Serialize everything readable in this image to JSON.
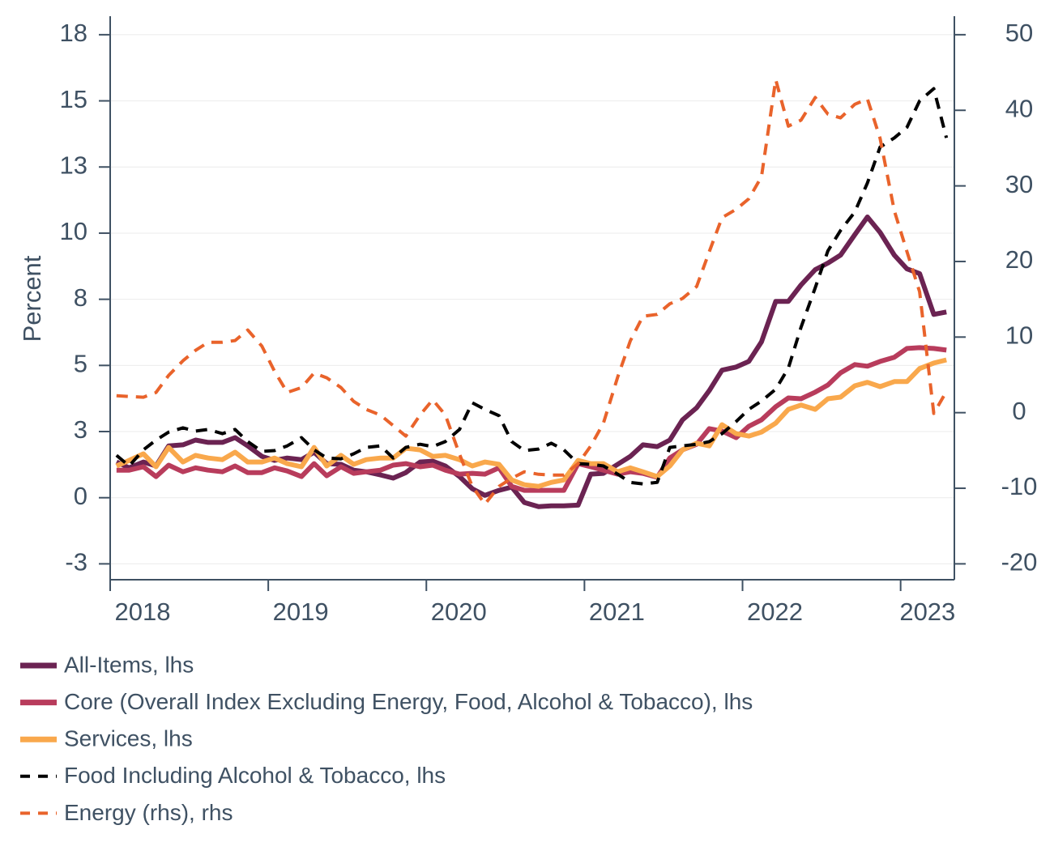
{
  "chart_data": {
    "type": "line",
    "y_label": "Percent",
    "x": [
      2018.04,
      2018.12,
      2018.21,
      2018.29,
      2018.37,
      2018.46,
      2018.54,
      2018.62,
      2018.71,
      2018.79,
      2018.87,
      2018.96,
      2019.04,
      2019.12,
      2019.21,
      2019.29,
      2019.37,
      2019.46,
      2019.54,
      2019.62,
      2019.71,
      2019.79,
      2019.87,
      2019.96,
      2020.04,
      2020.12,
      2020.21,
      2020.29,
      2020.37,
      2020.46,
      2020.54,
      2020.62,
      2020.71,
      2020.79,
      2020.87,
      2020.96,
      2021.04,
      2021.12,
      2021.21,
      2021.29,
      2021.37,
      2021.46,
      2021.54,
      2021.62,
      2021.71,
      2021.79,
      2021.87,
      2021.96,
      2022.04,
      2022.12,
      2022.21,
      2022.29,
      2022.37,
      2022.46,
      2022.54,
      2022.62,
      2022.71,
      2022.79,
      2022.87,
      2022.96,
      2023.04,
      2023.12,
      2023.21,
      2023.29
    ],
    "xlim": [
      2018,
      2023.34
    ],
    "xticks": [
      2018,
      2019,
      2020,
      2021,
      2022,
      2023
    ],
    "ylim": [
      -3.1,
      18.2
    ],
    "yticks": [
      {
        "value": -2.5,
        "label": "-3"
      },
      0,
      {
        "value": 2.5,
        "label": "3"
      },
      5,
      {
        "value": 7.5,
        "label": "8"
      },
      10,
      {
        "value": 12.5,
        "label": "13"
      },
      15,
      {
        "value": 17.5,
        "label": "18"
      }
    ],
    "y2lim": [
      -22.1,
      52.45
    ],
    "y2ticks": [
      -20,
      -10,
      0,
      10,
      20,
      30,
      40,
      50
    ],
    "grid": true,
    "legend": "bottom",
    "series": [
      {
        "name": "All-Items, lhs",
        "color": "#6b2352",
        "style": "solid",
        "values": [
          1.35,
          1.13,
          1.35,
          1.2,
          1.96,
          2.0,
          2.18,
          2.09,
          2.09,
          2.27,
          1.96,
          1.56,
          1.41,
          1.5,
          1.44,
          1.72,
          1.29,
          1.26,
          1.04,
          0.98,
          0.86,
          0.74,
          0.95,
          1.35,
          1.38,
          1.2,
          0.8,
          0.34,
          0.09,
          0.28,
          0.4,
          -0.18,
          -0.34,
          -0.31,
          -0.31,
          -0.28,
          0.89,
          0.92,
          1.26,
          1.56,
          2.0,
          1.93,
          2.18,
          2.94,
          3.4,
          4.05,
          4.82,
          4.94,
          5.15,
          5.89,
          7.42,
          7.42,
          8.04,
          8.62,
          8.87,
          9.17,
          9.94,
          10.61,
          10.03,
          9.17,
          8.65,
          8.47,
          6.93,
          7.02
        ]
      },
      {
        "name": "Core (Overall Index Excluding Energy, Food, Alcohol & Tobacco), lhs",
        "color": "#b83c5c",
        "style": "solid",
        "values": [
          1.04,
          1.04,
          1.17,
          0.8,
          1.23,
          0.98,
          1.13,
          1.04,
          0.98,
          1.2,
          0.95,
          0.95,
          1.13,
          1.01,
          0.8,
          1.29,
          0.83,
          1.17,
          0.92,
          0.98,
          1.04,
          1.23,
          1.29,
          1.17,
          1.23,
          1.04,
          0.89,
          0.92,
          0.89,
          1.13,
          0.43,
          0.28,
          0.28,
          0.28,
          0.28,
          1.29,
          1.17,
          1.04,
          0.89,
          0.98,
          0.92,
          0.77,
          1.5,
          1.81,
          2.02,
          2.61,
          2.52,
          2.27,
          2.7,
          2.94,
          3.44,
          3.77,
          3.74,
          3.99,
          4.26,
          4.72,
          5.03,
          4.97,
          5.15,
          5.31,
          5.64,
          5.67,
          5.64,
          5.58
        ]
      },
      {
        "name": "Services, lhs",
        "color": "#f9a84c",
        "style": "solid",
        "values": [
          1.2,
          1.41,
          1.66,
          1.17,
          1.9,
          1.35,
          1.6,
          1.5,
          1.44,
          1.72,
          1.35,
          1.35,
          1.5,
          1.29,
          1.17,
          1.9,
          1.2,
          1.6,
          1.26,
          1.44,
          1.5,
          1.5,
          1.87,
          1.81,
          1.56,
          1.6,
          1.44,
          1.2,
          1.35,
          1.26,
          0.67,
          0.49,
          0.43,
          0.58,
          0.67,
          1.41,
          1.29,
          1.29,
          0.98,
          1.13,
          0.98,
          0.8,
          1.2,
          1.81,
          2.06,
          1.96,
          2.76,
          2.42,
          2.33,
          2.48,
          2.82,
          3.34,
          3.5,
          3.34,
          3.74,
          3.8,
          4.23,
          4.36,
          4.2,
          4.39,
          4.39,
          4.88,
          5.09,
          5.21
        ]
      },
      {
        "name": "Food Including Alcohol & Tobacco, lhs",
        "color": "#000000",
        "style": "dashed",
        "values": [
          1.6,
          1.2,
          1.81,
          2.18,
          2.48,
          2.64,
          2.52,
          2.58,
          2.42,
          2.58,
          2.12,
          1.75,
          1.78,
          1.96,
          2.27,
          1.81,
          1.5,
          1.47,
          1.66,
          1.9,
          1.96,
          1.5,
          1.9,
          2.02,
          1.93,
          2.12,
          2.58,
          3.59,
          3.34,
          3.1,
          2.12,
          1.78,
          1.84,
          2.06,
          1.81,
          1.29,
          1.26,
          1.2,
          0.89,
          0.58,
          0.52,
          0.58,
          1.9,
          1.96,
          2.02,
          2.12,
          2.42,
          2.88,
          3.34,
          3.65,
          4.1,
          4.9,
          6.44,
          7.94,
          9.33,
          10.1,
          10.8,
          11.9,
          13.25,
          13.6,
          14.0,
          15.0,
          15.46,
          13.6
        ]
      },
      {
        "name": "Energy (rhs), rhs",
        "color": "#e9632b",
        "style": "dashed",
        "axis": "y2",
        "values": [
          2.25,
          2.14,
          2.04,
          2.68,
          4.93,
          6.86,
          8.25,
          9.32,
          9.32,
          9.54,
          10.93,
          8.79,
          5.47,
          2.68,
          3.32,
          5.25,
          4.61,
          3.32,
          1.5,
          0.43,
          -0.32,
          -1.71,
          -3.1,
          -0.3,
          1.7,
          -0.3,
          -5.5,
          -9.75,
          -12.1,
          -9.75,
          -8.68,
          -7.82,
          -8.15,
          -8.25,
          -8.25,
          -6.75,
          -4.4,
          -1.4,
          4.7,
          9.5,
          12.75,
          13.0,
          14.4,
          15.1,
          16.7,
          21.3,
          25.8,
          26.9,
          28.3,
          31.2,
          44.05,
          37.9,
          38.7,
          41.7,
          39.5,
          39.0,
          40.8,
          41.5,
          36.3,
          26.7,
          21.3,
          16.0,
          -0.1,
          2.8
        ]
      }
    ]
  }
}
